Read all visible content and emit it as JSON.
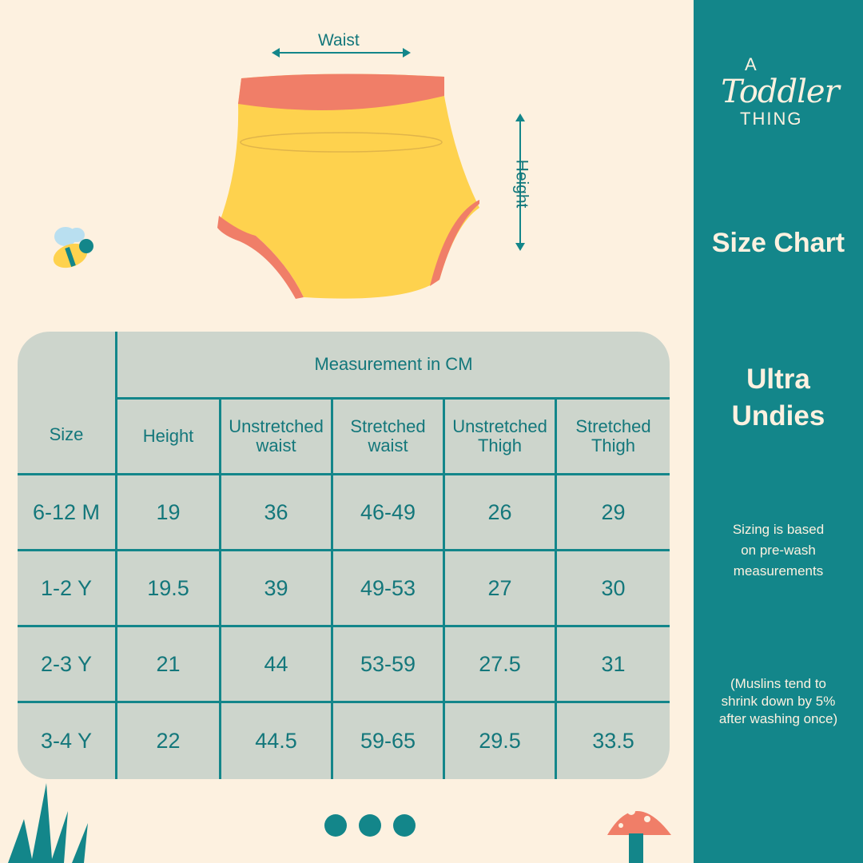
{
  "brand": {
    "logo_text": "A Toddler THING"
  },
  "sidebar": {
    "title": "Size Chart",
    "product": [
      "Ultra",
      "Undies"
    ],
    "note": [
      "Sizing is based",
      "on pre-wash",
      "measurements"
    ],
    "note2": [
      "(Muslins tend to",
      "shrink down by 5%",
      "after washing once)"
    ]
  },
  "diagram": {
    "waist_label": "Waist",
    "height_label": "Height"
  },
  "table": {
    "group_header": "Measurement in CM",
    "size_header": "Size",
    "columns": [
      "Height",
      "Unstretched waist",
      "Stretched waist",
      "Unstretched Thigh",
      "Stretched Thigh"
    ],
    "rows": [
      {
        "size": "6-12 M",
        "values": [
          "19",
          "36",
          "46-49",
          "26",
          "29"
        ]
      },
      {
        "size": "1-2 Y",
        "values": [
          "19.5",
          "39",
          "49-53",
          "27",
          "30"
        ]
      },
      {
        "size": "2-3 Y",
        "values": [
          "21",
          "44",
          "53-59",
          "27.5",
          "31"
        ]
      },
      {
        "size": "3-4 Y",
        "values": [
          "22",
          "44.5",
          "59-65",
          "29.5",
          "33.5"
        ]
      }
    ]
  },
  "colors": {
    "teal": "#13868a",
    "background": "#fdf1e0",
    "table_bg": "#cdd5cc",
    "undies_yellow": "#fed24e",
    "undies_coral": "#f07e68"
  },
  "pagination": {
    "dots": 3
  }
}
